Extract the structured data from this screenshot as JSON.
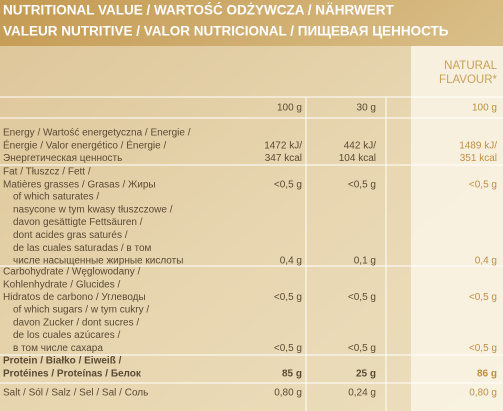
{
  "header": {
    "lines": [
      "NUTRITIONAL VALUE / WARTOŚĆ ODŻYWCZA / NÄHRWERT",
      "VALEUR NUTRITIVE / VALOR NUTRICIONAL / ПИЩЕВАЯ ЦЕННОСТЬ"
    ]
  },
  "table": {
    "variant_label": [
      "NATURAL",
      "FLAVOUR*"
    ],
    "columns": [
      "100 g",
      "30 g",
      "100 g"
    ],
    "rows": [
      {
        "label": [
          "Energy / Wartość energetyczna / Energie /",
          "Énergie / Valor energético / Énergie /",
          "Энергетическая ценность"
        ],
        "values": [
          [
            "1472 kJ/",
            "347 kcal"
          ],
          [
            "442 kJ/",
            "104 kcal"
          ],
          [
            "1489 kJ/",
            "351 kcal"
          ]
        ]
      },
      {
        "label": [
          "Fat / Tłuszcz / Fett /",
          "Matières grasses / Grasas / Жиры"
        ],
        "values": [
          [
            "<0,5 g"
          ],
          [
            "<0,5 g"
          ],
          [
            "<0,5 g"
          ]
        ]
      },
      {
        "label": [
          "of which saturates /",
          "nasycone w tym kwasy tłuszczowe /",
          "davon gesättigte Fettsäuren /",
          "dont acides gras saturés /",
          "de las cuales saturadas / в том",
          "числе насыщенные жирные кислоты"
        ],
        "values": [
          [
            "0,4 g"
          ],
          [
            "0,1 g"
          ],
          [
            "0,4 g"
          ]
        ]
      },
      {
        "label": [
          "Carbohydrate / Węglowodany /",
          "Kohlenhydrate / Glucides /",
          "Hidratos de carbono / Углеводы"
        ],
        "values": [
          [
            "<0,5 g"
          ],
          [
            "<0,5 g"
          ],
          [
            "<0,5 g"
          ]
        ]
      },
      {
        "label": [
          "of which sugars / w tym cukry /",
          "davon Zucker / dont sucres /",
          "de los cuales azúcares /",
          "в том числе сахара"
        ],
        "values": [
          [
            "<0,5 g"
          ],
          [
            "<0,5 g"
          ],
          [
            "<0,5 g"
          ]
        ]
      },
      {
        "label": [
          "Protein / Białko / Eiweiß /",
          "Protéines / Proteínas / Белок"
        ],
        "values": [
          [
            "85 g"
          ],
          [
            "25 g"
          ],
          [
            "86 g"
          ]
        ]
      },
      {
        "label": [
          "Salt / Sól / Salz / Sel / Sal / Соль"
        ],
        "values": [
          [
            "0,80 g"
          ],
          [
            "0,24 g"
          ],
          [
            "0,80 g"
          ]
        ]
      }
    ]
  }
}
